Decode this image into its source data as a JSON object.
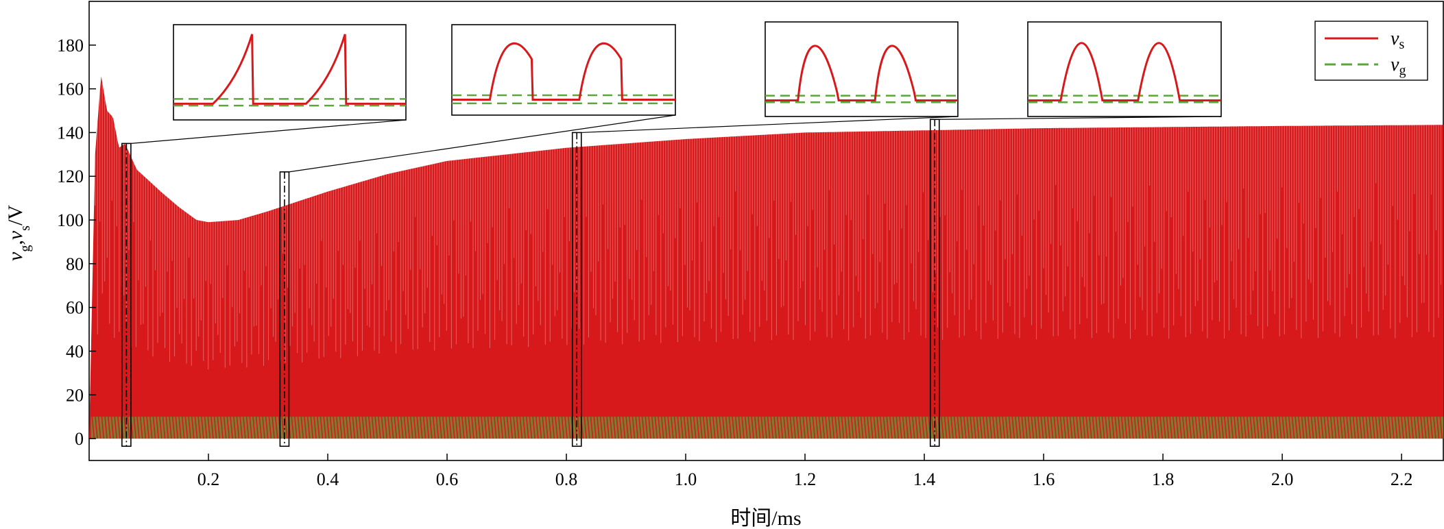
{
  "chart_data": {
    "type": "line",
    "xlabel": "时间/ms",
    "ylabel_parts": [
      "v",
      "g",
      ",",
      "v",
      "s",
      "/V"
    ],
    "xlim": [
      0.0,
      2.27
    ],
    "ylim": [
      -10,
      200
    ],
    "x_ticks": [
      0.2,
      0.4,
      0.6,
      0.8,
      1.0,
      1.2,
      1.4,
      1.6,
      1.8,
      2.0,
      2.2
    ],
    "x_tick_labels": [
      "0.2",
      "0.4",
      "0.6",
      "0.8",
      "1.0",
      "1.2",
      "1.4",
      "1.6",
      "1.8",
      "2.0",
      "2.2"
    ],
    "y_ticks": [
      0,
      20,
      40,
      60,
      80,
      100,
      120,
      140,
      160,
      180
    ],
    "y_tick_labels": [
      "0",
      "20",
      "40",
      "60",
      "80",
      "100",
      "120",
      "140",
      "160",
      "180"
    ],
    "grid": false,
    "legend_position": "top-right",
    "series": [
      {
        "name_base": "v",
        "name_sub": "s",
        "color": "#d7191c",
        "style": "solid",
        "description_points": {
          "x": [
            0.0,
            0.01,
            0.02,
            0.03,
            0.04,
            0.05,
            0.06,
            0.08,
            0.1,
            0.12,
            0.15,
            0.18,
            0.2,
            0.25,
            0.3,
            0.4,
            0.5,
            0.6,
            0.8,
            1.0,
            1.2,
            1.4,
            1.6,
            1.8,
            2.0,
            2.27
          ],
          "peak": [
            0,
            130,
            166,
            150,
            147,
            133,
            135,
            123,
            118,
            113,
            106,
            100,
            99,
            100,
            104,
            113,
            121,
            127,
            133,
            137,
            140,
            141,
            142,
            142.5,
            143,
            143.5
          ],
          "floor": [
            0,
            0,
            0,
            0,
            0,
            0,
            0,
            0,
            0,
            0,
            0,
            0,
            0,
            0,
            0,
            0,
            0,
            0,
            0,
            0,
            0,
            0,
            0,
            0,
            0,
            0
          ]
        }
      },
      {
        "name_base": "v",
        "name_sub": "g",
        "color": "#5aa63a",
        "style": "dashed",
        "high": 10,
        "low": 0
      }
    ],
    "zoom_windows": [
      {
        "x_start": 0.055,
        "x_end": 0.07,
        "y_top": 135
      },
      {
        "x_start": 0.32,
        "x_end": 0.335,
        "y_top": 122
      },
      {
        "x_start": 0.81,
        "x_end": 0.825,
        "y_top": 140
      },
      {
        "x_start": 1.41,
        "x_end": 1.425,
        "y_top": 146
      }
    ],
    "insets": [
      {
        "kind": "ramp-drop"
      },
      {
        "kind": "hump-flat"
      },
      {
        "kind": "peak-tail"
      },
      {
        "kind": "bell"
      }
    ]
  }
}
